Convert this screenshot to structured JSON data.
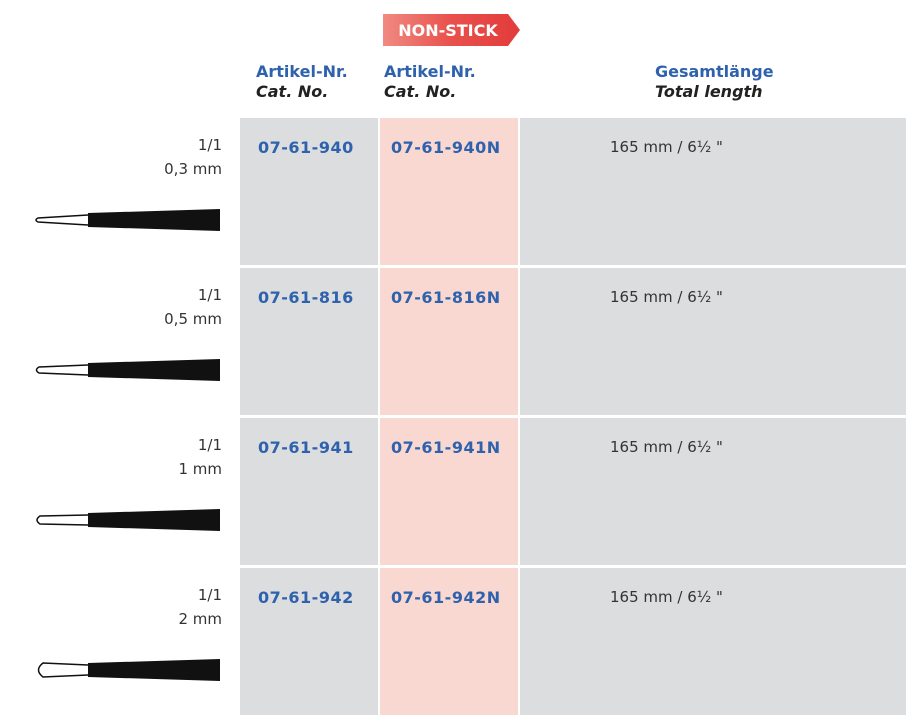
{
  "header": {
    "badge": "NON-STICK",
    "columns": [
      {
        "de": "Artikel-Nr.",
        "en": "Cat. No."
      },
      {
        "de": "Artikel-Nr.",
        "en": "Cat. No."
      },
      {
        "de": "Gesamtlänge",
        "en": "Total length"
      }
    ]
  },
  "rows": [
    {
      "ratio": "1/1",
      "size": "0,3 mm",
      "cat_no": "07-61-940",
      "cat_no_nonstick": "07-61-940N",
      "length": "165 mm / 6½ \""
    },
    {
      "ratio": "1/1",
      "size": "0,5 mm",
      "cat_no": "07-61-816",
      "cat_no_nonstick": "07-61-816N",
      "length": "165 mm / 6½ \""
    },
    {
      "ratio": "1/1",
      "size": "1 mm",
      "cat_no": "07-61-941",
      "cat_no_nonstick": "07-61-941N",
      "length": "165 mm / 6½ \""
    },
    {
      "ratio": "1/1",
      "size": "2 mm",
      "cat_no": "07-61-942",
      "cat_no_nonstick": "07-61-942N",
      "length": "165 mm / 6½ \""
    }
  ]
}
